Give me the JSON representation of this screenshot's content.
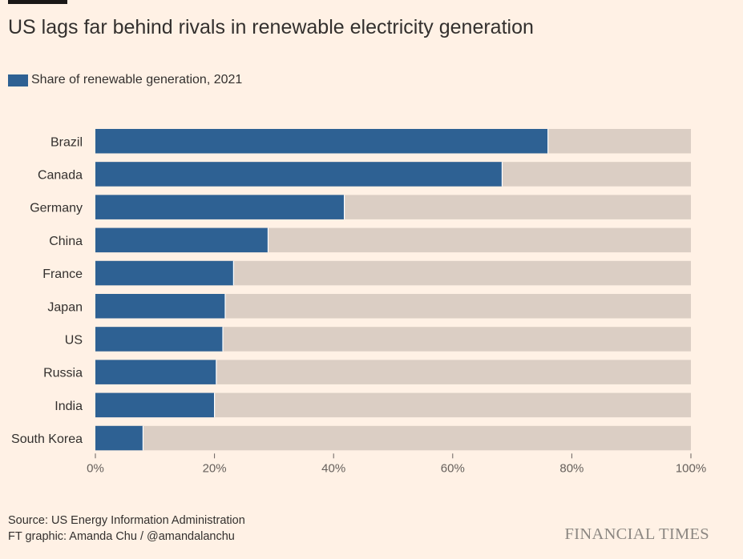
{
  "title": "US lags far behind rivals in renewable electricity generation",
  "legend": {
    "label": "Share of renewable generation, 2021",
    "color": "#2e6193"
  },
  "source": {
    "line1": "Source: US Energy Information Administration",
    "line2": "FT graphic: Amanda Chu / @amandalanchu"
  },
  "brand": "FINANCIAL TIMES",
  "colors": {
    "background": "#fff1e5",
    "bar": "#2e6193",
    "remainder": "#dbcec4"
  },
  "chart_data": {
    "type": "bar",
    "orientation": "horizontal",
    "stacked_to": 100,
    "categories": [
      "Brazil",
      "Canada",
      "Germany",
      "China",
      "France",
      "Japan",
      "US",
      "Russia",
      "India",
      "South Korea"
    ],
    "series": [
      {
        "name": "Share of renewable generation, 2021",
        "values": [
          76,
          68.3,
          41.8,
          29,
          23.2,
          21.8,
          21.4,
          20.3,
          20,
          8
        ]
      }
    ],
    "xlim": [
      0,
      100
    ],
    "xticks": [
      0,
      20,
      40,
      60,
      80,
      100
    ],
    "xtick_labels": [
      "0%",
      "20%",
      "40%",
      "60%",
      "80%",
      "100%"
    ],
    "grid": false,
    "legend_position": "top-left"
  }
}
